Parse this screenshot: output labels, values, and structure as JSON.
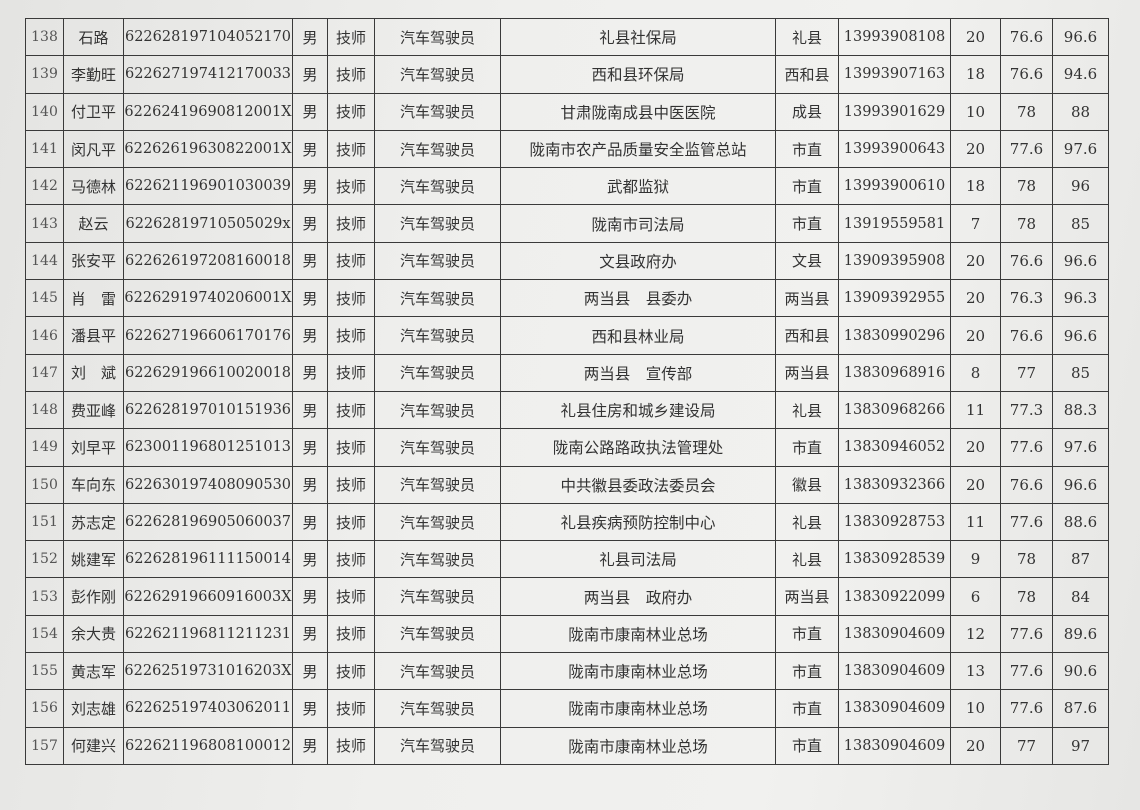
{
  "rows": [
    {
      "no": "138",
      "name": "石路",
      "id": "622628197104052170",
      "gender": "男",
      "level": "技师",
      "job": "汽车驾驶员",
      "org": "礼县社保局",
      "area": "礼县",
      "phone": "13993908108",
      "s1": "20",
      "s2": "76.6",
      "total": "96.6"
    },
    {
      "no": "139",
      "name": "李勤旺",
      "id": "622627197412170033",
      "gender": "男",
      "level": "技师",
      "job": "汽车驾驶员",
      "org": "西和县环保局",
      "area": "西和县",
      "phone": "13993907163",
      "s1": "18",
      "s2": "76.6",
      "total": "94.6"
    },
    {
      "no": "140",
      "name": "付卫平",
      "id": "62262419690812001X",
      "gender": "男",
      "level": "技师",
      "job": "汽车驾驶员",
      "org": "甘肃陇南成县中医医院",
      "area": "成县",
      "phone": "13993901629",
      "s1": "10",
      "s2": "78",
      "total": "88"
    },
    {
      "no": "141",
      "name": "闵凡平",
      "id": "62262619630822001X",
      "gender": "男",
      "level": "技师",
      "job": "汽车驾驶员",
      "org": "陇南市农产品质量安全监管总站",
      "area": "市直",
      "phone": "13993900643",
      "s1": "20",
      "s2": "77.6",
      "total": "97.6"
    },
    {
      "no": "142",
      "name": "马德林",
      "id": "622621196901030039",
      "gender": "男",
      "level": "技师",
      "job": "汽车驾驶员",
      "org": "武都监狱",
      "area": "市直",
      "phone": "13993900610",
      "s1": "18",
      "s2": "78",
      "total": "96"
    },
    {
      "no": "143",
      "name": "赵云",
      "id": "62262819710505029x",
      "gender": "男",
      "level": "技师",
      "job": "汽车驾驶员",
      "org": "陇南市司法局",
      "area": "市直",
      "phone": "13919559581",
      "s1": "7",
      "s2": "78",
      "total": "85"
    },
    {
      "no": "144",
      "name": "张安平",
      "id": "622626197208160018",
      "gender": "男",
      "level": "技师",
      "job": "汽车驾驶员",
      "org": "文县政府办",
      "area": "文县",
      "phone": "13909395908",
      "s1": "20",
      "s2": "76.6",
      "total": "96.6"
    },
    {
      "no": "145",
      "name": "肖　雷",
      "id": "62262919740206001X",
      "gender": "男",
      "level": "技师",
      "job": "汽车驾驶员",
      "org": "两当县　县委办",
      "area": "两当县",
      "phone": "13909392955",
      "s1": "20",
      "s2": "76.3",
      "total": "96.3"
    },
    {
      "no": "146",
      "name": "潘县平",
      "id": "622627196606170176",
      "gender": "男",
      "level": "技师",
      "job": "汽车驾驶员",
      "org": "西和县林业局",
      "area": "西和县",
      "phone": "13830990296",
      "s1": "20",
      "s2": "76.6",
      "total": "96.6"
    },
    {
      "no": "147",
      "name": "刘　斌",
      "id": "622629196610020018",
      "gender": "男",
      "level": "技师",
      "job": "汽车驾驶员",
      "org": "两当县　宣传部",
      "area": "两当县",
      "phone": "13830968916",
      "s1": "8",
      "s2": "77",
      "total": "85"
    },
    {
      "no": "148",
      "name": "费亚峰",
      "id": "622628197010151936",
      "gender": "男",
      "level": "技师",
      "job": "汽车驾驶员",
      "org": "礼县住房和城乡建设局",
      "area": "礼县",
      "phone": "13830968266",
      "s1": "11",
      "s2": "77.3",
      "total": "88.3"
    },
    {
      "no": "149",
      "name": "刘早平",
      "id": "623001196801251013",
      "gender": "男",
      "level": "技师",
      "job": "汽车驾驶员",
      "org": "陇南公路路政执法管理处",
      "area": "市直",
      "phone": "13830946052",
      "s1": "20",
      "s2": "77.6",
      "total": "97.6"
    },
    {
      "no": "150",
      "name": "车向东",
      "id": "622630197408090530",
      "gender": "男",
      "level": "技师",
      "job": "汽车驾驶员",
      "org": "中共徽县委政法委员会",
      "area": "徽县",
      "phone": "13830932366",
      "s1": "20",
      "s2": "76.6",
      "total": "96.6"
    },
    {
      "no": "151",
      "name": "苏志定",
      "id": "622628196905060037",
      "gender": "男",
      "level": "技师",
      "job": "汽车驾驶员",
      "org": "礼县疾病预防控制中心",
      "area": "礼县",
      "phone": "13830928753",
      "s1": "11",
      "s2": "77.6",
      "total": "88.6"
    },
    {
      "no": "152",
      "name": "姚建军",
      "id": "622628196111150014",
      "gender": "男",
      "level": "技师",
      "job": "汽车驾驶员",
      "org": "礼县司法局",
      "area": "礼县",
      "phone": "13830928539",
      "s1": "9",
      "s2": "78",
      "total": "87"
    },
    {
      "no": "153",
      "name": "彭作刚",
      "id": "62262919660916003X",
      "gender": "男",
      "level": "技师",
      "job": "汽车驾驶员",
      "org": "两当县　政府办",
      "area": "两当县",
      "phone": "13830922099",
      "s1": "6",
      "s2": "78",
      "total": "84"
    },
    {
      "no": "154",
      "name": "余大贵",
      "id": "622621196811211231",
      "gender": "男",
      "level": "技师",
      "job": "汽车驾驶员",
      "org": "陇南市康南林业总场",
      "area": "市直",
      "phone": "13830904609",
      "s1": "12",
      "s2": "77.6",
      "total": "89.6"
    },
    {
      "no": "155",
      "name": "黄志军",
      "id": "62262519731016203X",
      "gender": "男",
      "level": "技师",
      "job": "汽车驾驶员",
      "org": "陇南市康南林业总场",
      "area": "市直",
      "phone": "13830904609",
      "s1": "13",
      "s2": "77.6",
      "total": "90.6"
    },
    {
      "no": "156",
      "name": "刘志雄",
      "id": "622625197403062011",
      "gender": "男",
      "level": "技师",
      "job": "汽车驾驶员",
      "org": "陇南市康南林业总场",
      "area": "市直",
      "phone": "13830904609",
      "s1": "10",
      "s2": "77.6",
      "total": "87.6"
    },
    {
      "no": "157",
      "name": "何建兴",
      "id": "622621196808100012",
      "gender": "男",
      "level": "技师",
      "job": "汽车驾驶员",
      "org": "陇南市康南林业总场",
      "area": "市直",
      "phone": "13830904609",
      "s1": "20",
      "s2": "77",
      "total": "97"
    }
  ]
}
